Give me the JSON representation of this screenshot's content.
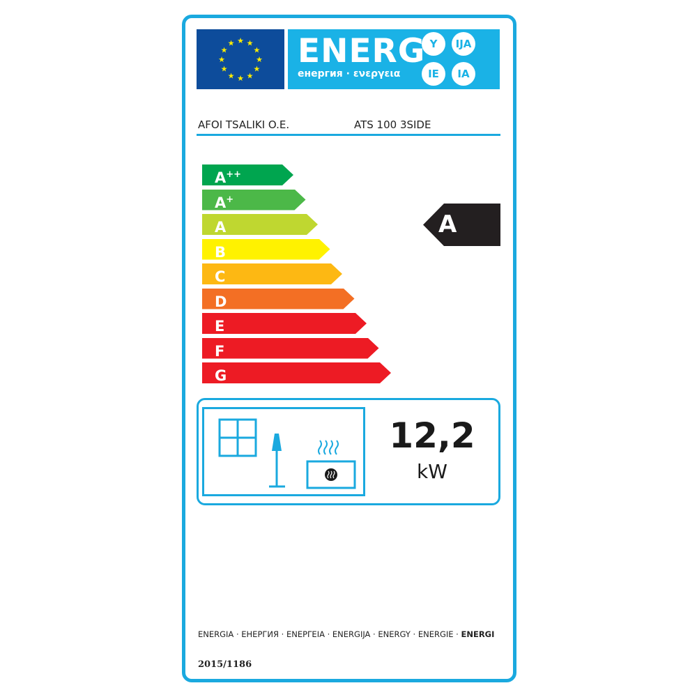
{
  "header": {
    "energy_word": "ENERG",
    "suffixes": [
      "Y",
      "IJA",
      "IE",
      "IA"
    ],
    "subtitle": "енергия · ενεργεια",
    "supplier": "AFOI TSALIKI O.E.",
    "model": "ATS 100 3SIDE"
  },
  "scale": {
    "classes": [
      {
        "label": "A",
        "sup": "++",
        "color": "#00a54f"
      },
      {
        "label": "A",
        "sup": "+",
        "color": "#4cb848"
      },
      {
        "label": "A",
        "sup": "",
        "color": "#bfd730"
      },
      {
        "label": "B",
        "sup": "",
        "color": "#fff200"
      },
      {
        "label": "C",
        "sup": "",
        "color": "#fdb813"
      },
      {
        "label": "D",
        "sup": "",
        "color": "#f36f24"
      },
      {
        "label": "E",
        "sup": "",
        "color": "#ed1b24"
      },
      {
        "label": "F",
        "sup": "",
        "color": "#ed1b24"
      },
      {
        "label": "G",
        "sup": "",
        "color": "#ed1b24"
      }
    ],
    "rating": "A"
  },
  "output": {
    "value": "12,2",
    "unit": "kW",
    "icons": [
      "window-icon",
      "lamp-icon",
      "heater-icon"
    ]
  },
  "footer": {
    "languages": "ENERGIA · ЕНЕРГИЯ · ΕΝΕΡΓΕΙΑ · ENERGIJA · ENERGY · ENERGIE · ",
    "last": "ENERGI",
    "regulation": "2015/1186"
  },
  "colors": {
    "frame": "#1aa9df",
    "flag": "#0d4c9b",
    "banner": "#1ab2e6"
  }
}
